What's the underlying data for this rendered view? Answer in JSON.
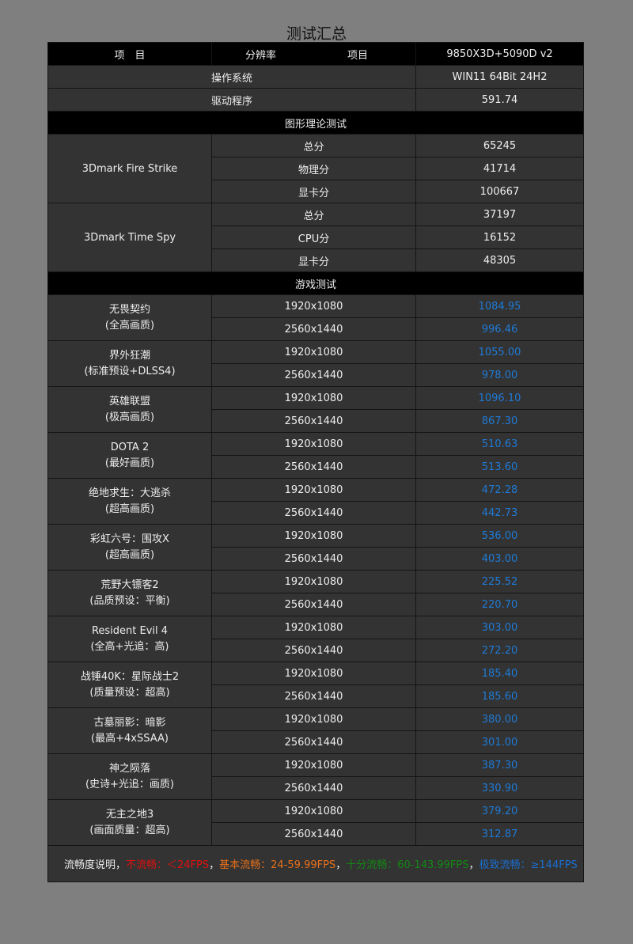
{
  "title": "测试汇总",
  "header": {
    "col1": "项　目",
    "col2a": "分辨率",
    "col2b": "项目",
    "col3": "9850X3D+5090D v2"
  },
  "system": [
    {
      "label": "操作系统",
      "value": "WIN11 64Bit 24H2"
    },
    {
      "label": "驱动程序",
      "value": "591.74"
    }
  ],
  "sections": {
    "graphics": "图形理论测试",
    "games": "游戏测试"
  },
  "benchmarks": [
    {
      "name": "3Dmark Fire Strike",
      "items": [
        {
          "label": "总分",
          "value": "65245"
        },
        {
          "label": "物理分",
          "value": "41714"
        },
        {
          "label": "显卡分",
          "value": "100667"
        }
      ]
    },
    {
      "name": "3Dmark Time Spy",
      "items": [
        {
          "label": "总分",
          "value": "37197"
        },
        {
          "label": "CPU分",
          "value": "16152"
        },
        {
          "label": "显卡分",
          "value": "48305"
        }
      ]
    }
  ],
  "games": [
    {
      "name": "无畏契约",
      "setting": "(全高画质)",
      "results": [
        {
          "res": "1920x1080",
          "fps": "1084.95"
        },
        {
          "res": "2560x1440",
          "fps": "996.46"
        }
      ]
    },
    {
      "name": "界外狂潮",
      "setting": "(标准预设+DLSS4)",
      "results": [
        {
          "res": "1920x1080",
          "fps": "1055.00"
        },
        {
          "res": "2560x1440",
          "fps": "978.00"
        }
      ]
    },
    {
      "name": "英雄联盟",
      "setting": "(极高画质)",
      "results": [
        {
          "res": "1920x1080",
          "fps": "1096.10"
        },
        {
          "res": "2560x1440",
          "fps": "867.30"
        }
      ]
    },
    {
      "name": "DOTA 2",
      "setting": "(最好画质)",
      "results": [
        {
          "res": "1920x1080",
          "fps": "510.63"
        },
        {
          "res": "2560x1440",
          "fps": "513.60"
        }
      ]
    },
    {
      "name": "绝地求生：大逃杀",
      "setting": "(超高画质)",
      "results": [
        {
          "res": "1920x1080",
          "fps": "472.28"
        },
        {
          "res": "2560x1440",
          "fps": "442.73"
        }
      ]
    },
    {
      "name": "彩虹六号：围攻X",
      "setting": "(超高画质)",
      "results": [
        {
          "res": "1920x1080",
          "fps": "536.00"
        },
        {
          "res": "2560x1440",
          "fps": "403.00"
        }
      ]
    },
    {
      "name": "荒野大镖客2",
      "setting": "(品质预设：平衡)",
      "results": [
        {
          "res": "1920x1080",
          "fps": "225.52"
        },
        {
          "res": "2560x1440",
          "fps": "220.70"
        }
      ]
    },
    {
      "name": "Resident Evil 4",
      "setting": "(全高+光追：高)",
      "results": [
        {
          "res": "1920x1080",
          "fps": "303.00"
        },
        {
          "res": "2560x1440",
          "fps": "272.20"
        }
      ]
    },
    {
      "name": "战锤40K：星际战士2",
      "setting": "(质量预设：超高)",
      "results": [
        {
          "res": "1920x1080",
          "fps": "185.40"
        },
        {
          "res": "2560x1440",
          "fps": "185.60"
        }
      ]
    },
    {
      "name": "古墓丽影：暗影",
      "setting": "(最高+4xSSAA)",
      "results": [
        {
          "res": "1920x1080",
          "fps": "380.00"
        },
        {
          "res": "2560x1440",
          "fps": "301.00"
        }
      ]
    },
    {
      "name": "神之陨落",
      "setting": "(史诗+光追：画质)",
      "results": [
        {
          "res": "1920x1080",
          "fps": "387.30"
        },
        {
          "res": "2560x1440",
          "fps": "330.90"
        }
      ]
    },
    {
      "name": "无主之地3",
      "setting": "(画面质量：超高)",
      "results": [
        {
          "res": "1920x1080",
          "fps": "379.20"
        },
        {
          "res": "2560x1440",
          "fps": "312.87"
        }
      ]
    }
  ],
  "legend": {
    "prefix": "流畅度说明，",
    "items": [
      {
        "text": "不流畅：＜24FPS",
        "color": "#e01010"
      },
      {
        "text": "基本流畅：24-59.99FPS",
        "color": "#e8701a"
      },
      {
        "text": "十分流畅：60-143.99FPS",
        "color": "#138a13"
      },
      {
        "text": "极致流畅：≥144FPS",
        "color": "#1a6fd0"
      }
    ],
    "sep": "，"
  },
  "colors": {
    "value": "#1f7ad6",
    "background": "#7f7f7f",
    "cell": "#333333"
  }
}
